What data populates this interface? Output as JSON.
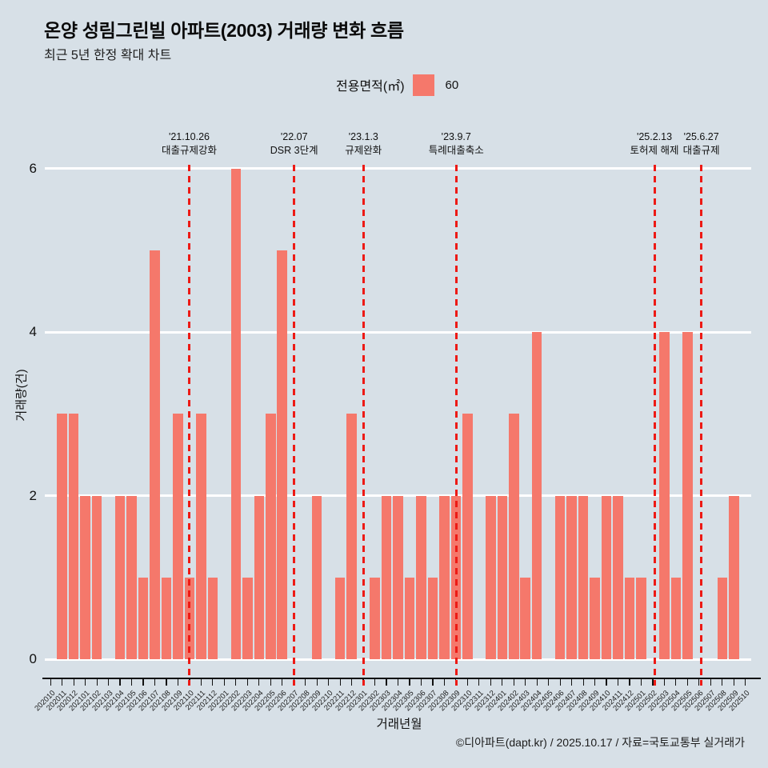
{
  "header": {
    "title": "온양 성림그린빌 아파트(2003) 거래량 변화 흐름",
    "subtitle": "최근 5년 한정 확대 차트"
  },
  "legend": {
    "label": "전용면적(㎡)",
    "value": "60",
    "swatch_color": "#f5786b"
  },
  "chart_data": {
    "type": "bar",
    "title": "온양 성림그린빌 아파트(2003) 거래량 변화 흐름",
    "xlabel": "거래년월",
    "ylabel": "거래량(건)",
    "ylim": [
      0,
      6
    ],
    "yticks": [
      0,
      2,
      4,
      6
    ],
    "grid": true,
    "legend_position": "top-center",
    "bar_color": "#f5786b",
    "event_line_color": "#ed1a15",
    "categories": [
      "202010",
      "202011",
      "202012",
      "202101",
      "202102",
      "202103",
      "202104",
      "202105",
      "202106",
      "202107",
      "202108",
      "202109",
      "202110",
      "202111",
      "202112",
      "202201",
      "202202",
      "202203",
      "202204",
      "202205",
      "202206",
      "202207",
      "202208",
      "202209",
      "202210",
      "202211",
      "202212",
      "202301",
      "202302",
      "202303",
      "202304",
      "202305",
      "202306",
      "202307",
      "202308",
      "202309",
      "202310",
      "202311",
      "202312",
      "202401",
      "202402",
      "202403",
      "202404",
      "202405",
      "202406",
      "202407",
      "202408",
      "202409",
      "202410",
      "202411",
      "202412",
      "202501",
      "202502",
      "202503",
      "202504",
      "202505",
      "202506",
      "202507",
      "202508",
      "202509",
      "202510"
    ],
    "values": [
      0,
      3,
      3,
      2,
      2,
      0,
      2,
      2,
      1,
      5,
      1,
      3,
      1,
      3,
      1,
      0,
      6,
      1,
      2,
      3,
      5,
      0,
      0,
      2,
      0,
      1,
      3,
      0,
      1,
      2,
      2,
      1,
      2,
      1,
      2,
      2,
      3,
      0,
      2,
      2,
      3,
      1,
      4,
      0,
      2,
      2,
      2,
      1,
      2,
      2,
      1,
      1,
      0,
      4,
      1,
      4,
      0,
      0,
      1,
      2,
      0
    ],
    "annotations": [
      {
        "date": "'21.10.26",
        "label": "대출규제강화",
        "x_pct": 20.44
      },
      {
        "date": "'22.07",
        "label": "DSR 3단계",
        "x_pct": 35.3
      },
      {
        "date": "'23.1.3",
        "label": "규제완화",
        "x_pct": 45.11
      },
      {
        "date": "'23.9.7",
        "label": "특례대출축소",
        "x_pct": 58.24
      },
      {
        "date": "'25.2.13",
        "label": "토허제 해제",
        "x_pct": 86.3
      },
      {
        "date": "'25.6.27",
        "label": "대출규제",
        "x_pct": 92.94
      }
    ]
  },
  "footer": {
    "attribution": "©디아파트(dapt.kr) / 2025.10.17 / 자료=국토교통부 실거래가"
  },
  "colors": {
    "background": "#d7e0e7",
    "bar": "#f5786b",
    "event_line": "#ed1a15",
    "gridline": "#ffffff",
    "text": "#111111"
  }
}
